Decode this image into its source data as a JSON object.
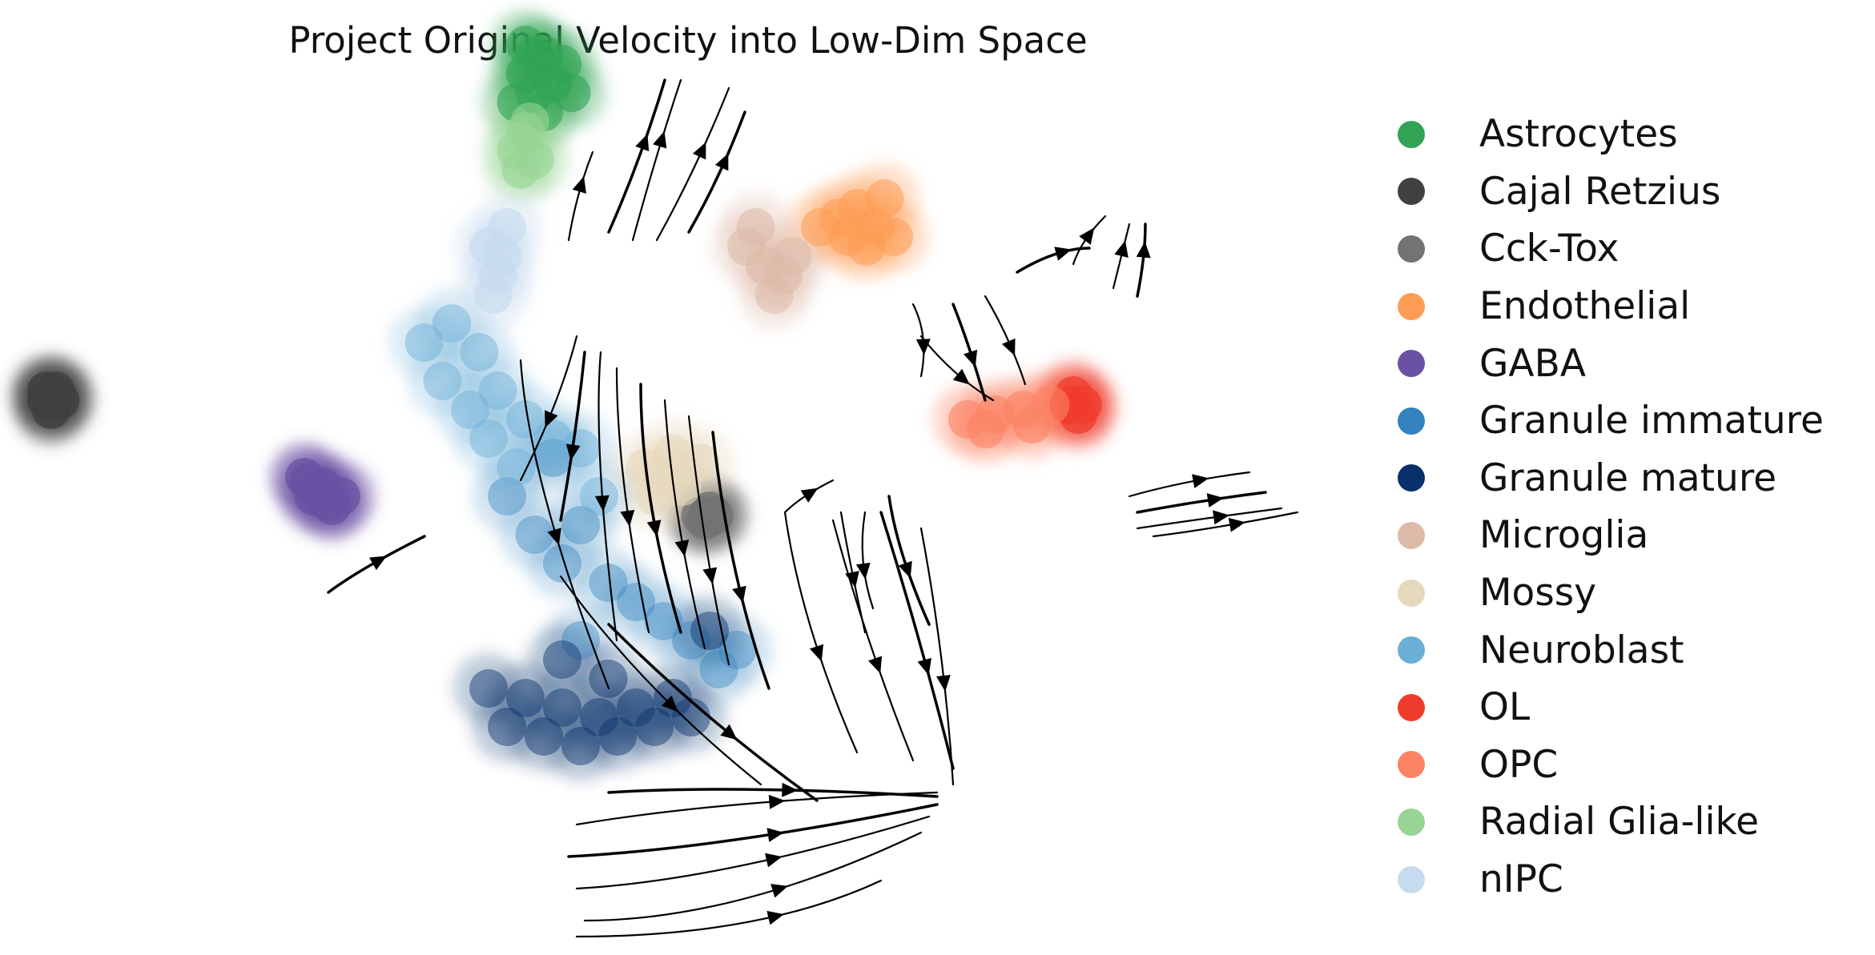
{
  "chart_data": {
    "type": "scatter",
    "title": "Project Original Velocity into Low-Dim Space",
    "xlabel": "",
    "ylabel": "",
    "axes_visible": false,
    "grid": false,
    "overlay": "velocity streamlines (black arrows)",
    "legend_position": "right",
    "series": [
      {
        "name": "Astrocytes",
        "color": "#31a354",
        "opacity": 0.6,
        "points": [
          [
            5.4,
            9.4
          ],
          [
            5.6,
            9.6
          ],
          [
            5.5,
            9.2
          ],
          [
            5.8,
            9.5
          ],
          [
            5.3,
            9.1
          ],
          [
            5.7,
            9.3
          ],
          [
            5.9,
            9.2
          ],
          [
            5.5,
            9.6
          ],
          [
            5.6,
            9.0
          ],
          [
            5.4,
            9.7
          ]
        ]
      },
      {
        "name": "Cajal Retzius",
        "color": "#404040",
        "opacity": 0.8,
        "points": [
          [
            0.2,
            6.0
          ],
          [
            0.3,
            6.1
          ],
          [
            0.25,
            5.9
          ],
          [
            0.35,
            6.0
          ],
          [
            0.2,
            6.1
          ]
        ]
      },
      {
        "name": "Cck-Tox",
        "color": "#737373",
        "opacity": 0.8,
        "points": [
          [
            7.3,
            4.8
          ],
          [
            7.4,
            4.85
          ],
          [
            7.35,
            4.75
          ],
          [
            7.45,
            4.8
          ]
        ]
      },
      {
        "name": "Endothelial",
        "color": "#fd9d53",
        "opacity": 0.55,
        "points": [
          [
            8.8,
            7.9
          ],
          [
            9.0,
            8.0
          ],
          [
            9.2,
            7.8
          ],
          [
            9.1,
            7.6
          ],
          [
            8.9,
            7.7
          ],
          [
            9.3,
            8.1
          ],
          [
            8.6,
            7.8
          ],
          [
            9.4,
            7.7
          ]
        ]
      },
      {
        "name": "GABA",
        "color": "#6a51a3",
        "opacity": 0.75,
        "points": [
          [
            3.0,
            5.2
          ],
          [
            3.1,
            5.0
          ],
          [
            3.3,
            4.9
          ],
          [
            3.2,
            5.1
          ],
          [
            3.4,
            5.0
          ],
          [
            3.05,
            5.15
          ],
          [
            3.25,
            4.95
          ]
        ]
      },
      {
        "name": "Granule immature",
        "color": "#3182bd",
        "opacity": 0.4,
        "points": [
          [
            5.2,
            5.0
          ],
          [
            5.5,
            4.6
          ],
          [
            5.8,
            4.3
          ],
          [
            6.0,
            4.7
          ],
          [
            6.3,
            4.1
          ],
          [
            6.6,
            3.9
          ],
          [
            6.9,
            3.7
          ],
          [
            7.2,
            3.5
          ],
          [
            7.5,
            3.2
          ],
          [
            7.7,
            3.4
          ],
          [
            6.0,
            3.5
          ],
          [
            5.7,
            5.4
          ]
        ]
      },
      {
        "name": "Granule mature",
        "color": "#08306b",
        "opacity": 0.45,
        "points": [
          [
            5.0,
            3.0
          ],
          [
            5.4,
            2.9
          ],
          [
            5.8,
            2.8
          ],
          [
            6.2,
            2.7
          ],
          [
            6.6,
            2.8
          ],
          [
            7.0,
            2.9
          ],
          [
            5.2,
            2.6
          ],
          [
            5.6,
            2.5
          ],
          [
            6.0,
            2.4
          ],
          [
            6.4,
            2.5
          ],
          [
            6.8,
            2.6
          ],
          [
            7.2,
            2.7
          ],
          [
            5.8,
            3.3
          ],
          [
            6.3,
            3.1
          ],
          [
            7.4,
            3.6
          ]
        ]
      },
      {
        "name": "Microglia",
        "color": "#ddb9a8",
        "opacity": 0.55,
        "points": [
          [
            7.8,
            7.6
          ],
          [
            8.0,
            7.4
          ],
          [
            8.2,
            7.3
          ],
          [
            7.9,
            7.8
          ],
          [
            8.1,
            7.1
          ],
          [
            8.3,
            7.5
          ]
        ]
      },
      {
        "name": "Mossy",
        "color": "#e6d8bd",
        "opacity": 0.6,
        "points": [
          [
            6.7,
            5.3
          ],
          [
            6.9,
            5.2
          ],
          [
            7.1,
            5.1
          ],
          [
            6.8,
            5.0
          ],
          [
            7.3,
            5.35
          ],
          [
            7.0,
            5.45
          ]
        ]
      },
      {
        "name": "Neuroblast",
        "color": "#6baed6",
        "opacity": 0.45,
        "points": [
          [
            4.3,
            6.6
          ],
          [
            4.6,
            6.8
          ],
          [
            4.9,
            6.5
          ],
          [
            5.1,
            6.1
          ],
          [
            5.4,
            5.8
          ],
          [
            5.7,
            5.6
          ],
          [
            4.5,
            6.2
          ],
          [
            4.8,
            5.9
          ],
          [
            5.0,
            5.6
          ],
          [
            5.3,
            5.3
          ],
          [
            6.0,
            5.5
          ],
          [
            6.2,
            5.0
          ]
        ]
      },
      {
        "name": "OL",
        "color": "#ef3b2c",
        "opacity": 0.7,
        "points": [
          [
            11.3,
            5.95
          ],
          [
            11.4,
            5.85
          ],
          [
            11.35,
            6.05
          ],
          [
            11.45,
            5.95
          ]
        ]
      },
      {
        "name": "OPC",
        "color": "#fb8465",
        "opacity": 0.6,
        "points": [
          [
            10.2,
            5.8
          ],
          [
            10.5,
            5.85
          ],
          [
            10.8,
            5.9
          ],
          [
            10.4,
            5.7
          ],
          [
            10.9,
            5.75
          ],
          [
            11.1,
            5.95
          ]
        ]
      },
      {
        "name": "Radial Glia-like",
        "color": "#98d594",
        "opacity": 0.6,
        "points": [
          [
            5.3,
            8.6
          ],
          [
            5.4,
            8.8
          ],
          [
            5.5,
            8.5
          ],
          [
            5.35,
            8.4
          ],
          [
            5.45,
            8.9
          ]
        ]
      },
      {
        "name": "nIPC",
        "color": "#c6dbef",
        "opacity": 0.6,
        "points": [
          [
            5.0,
            7.6
          ],
          [
            5.1,
            7.3
          ],
          [
            5.2,
            7.8
          ],
          [
            5.05,
            7.1
          ],
          [
            5.15,
            7.5
          ]
        ]
      }
    ]
  }
}
